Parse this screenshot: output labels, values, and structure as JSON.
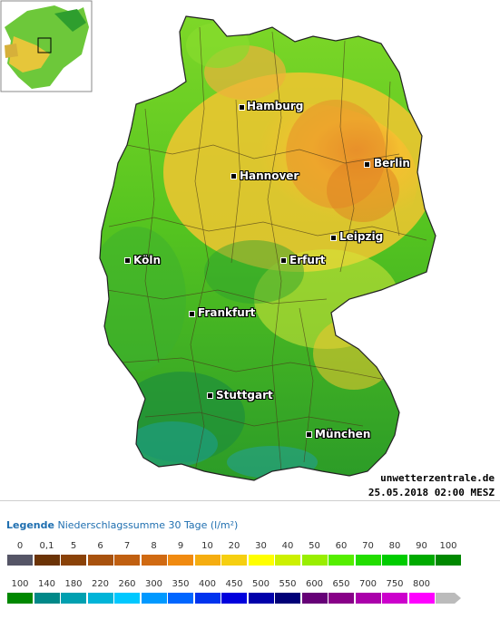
{
  "legend": {
    "heading": "Legende",
    "subtitle": "Niederschlagssumme 30 Tage",
    "unit": "(l/m²)",
    "row1": [
      {
        "label": "0",
        "color": "#555566"
      },
      {
        "label": "0,1",
        "color": "#6b3306"
      },
      {
        "label": "5",
        "color": "#8a4208"
      },
      {
        "label": "6",
        "color": "#a8520e"
      },
      {
        "label": "7",
        "color": "#c05f10"
      },
      {
        "label": "8",
        "color": "#d06a12"
      },
      {
        "label": "9",
        "color": "#f08a10"
      },
      {
        "label": "10",
        "color": "#f5ad10"
      },
      {
        "label": "20",
        "color": "#f6cf10"
      },
      {
        "label": "30",
        "color": "#ffff00"
      },
      {
        "label": "40",
        "color": "#ccf000"
      },
      {
        "label": "50",
        "color": "#99ee00"
      },
      {
        "label": "60",
        "color": "#55ee00"
      },
      {
        "label": "70",
        "color": "#22dd00"
      },
      {
        "label": "80",
        "color": "#00cc00"
      },
      {
        "label": "90",
        "color": "#00aa00"
      },
      {
        "label": "100",
        "color": "#008800"
      }
    ],
    "row2": [
      {
        "label": "100",
        "color": "#008800"
      },
      {
        "label": "140",
        "color": "#008888"
      },
      {
        "label": "180",
        "color": "#00a0b0"
      },
      {
        "label": "220",
        "color": "#00b4d8"
      },
      {
        "label": "260",
        "color": "#00c8ff"
      },
      {
        "label": "300",
        "color": "#0099ff"
      },
      {
        "label": "350",
        "color": "#0066ff"
      },
      {
        "label": "400",
        "color": "#0033ee"
      },
      {
        "label": "450",
        "color": "#0000dd"
      },
      {
        "label": "500",
        "color": "#0000aa"
      },
      {
        "label": "550",
        "color": "#000077"
      },
      {
        "label": "600",
        "color": "#660077"
      },
      {
        "label": "650",
        "color": "#880088"
      },
      {
        "label": "700",
        "color": "#aa00aa"
      },
      {
        "label": "750",
        "color": "#cc00cc"
      },
      {
        "label": "800",
        "color": "#ff00ff"
      },
      {
        "label": "",
        "color": "#bbbbbb"
      }
    ]
  },
  "cities": {
    "hamburg": "Hamburg",
    "hannover": "Hannover",
    "berlin": "Berlin",
    "leipzig": "Leipzig",
    "koeln": "Köln",
    "erfurt": "Erfurt",
    "frankfurt": "Frankfurt",
    "stuttgart": "Stuttgart",
    "muenchen": "München"
  },
  "credit": "unwetterzentrale.de",
  "timestamp": "25.05.2018 02:00 MESZ",
  "colors": {
    "dry": "#f0b030",
    "medium": "#55cc22",
    "wet": "#228822"
  }
}
